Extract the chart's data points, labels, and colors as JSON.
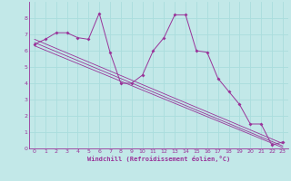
{
  "xlabel": "Windchill (Refroidissement éolien,°C)",
  "bg_color": "#c2e8e8",
  "line_color": "#993399",
  "grid_color": "#aadddd",
  "spine_color": "#993399",
  "xlim": [
    -0.5,
    23.5
  ],
  "ylim": [
    0,
    9
  ],
  "xticks": [
    0,
    1,
    2,
    3,
    4,
    5,
    6,
    7,
    8,
    9,
    10,
    11,
    12,
    13,
    14,
    15,
    16,
    17,
    18,
    19,
    20,
    21,
    22,
    23
  ],
  "yticks": [
    0,
    1,
    2,
    3,
    4,
    5,
    6,
    7,
    8
  ],
  "series1_x": [
    0,
    1,
    2,
    3,
    4,
    5,
    6,
    7,
    8,
    9,
    10,
    11,
    12,
    13,
    14,
    15,
    16,
    17,
    18,
    19,
    20,
    21,
    22,
    23
  ],
  "series1_y": [
    6.4,
    6.7,
    7.1,
    7.1,
    6.8,
    6.7,
    8.3,
    5.9,
    4.0,
    4.0,
    4.5,
    6.0,
    6.8,
    8.2,
    8.2,
    6.0,
    5.9,
    4.3,
    3.5,
    2.7,
    1.5,
    1.5,
    0.2,
    0.4
  ],
  "regression_lines": [
    {
      "x": [
        0,
        23
      ],
      "y": [
        6.7,
        0.3
      ]
    },
    {
      "x": [
        0,
        23
      ],
      "y": [
        6.5,
        0.15
      ]
    },
    {
      "x": [
        0,
        23
      ],
      "y": [
        6.3,
        0.05
      ]
    }
  ]
}
